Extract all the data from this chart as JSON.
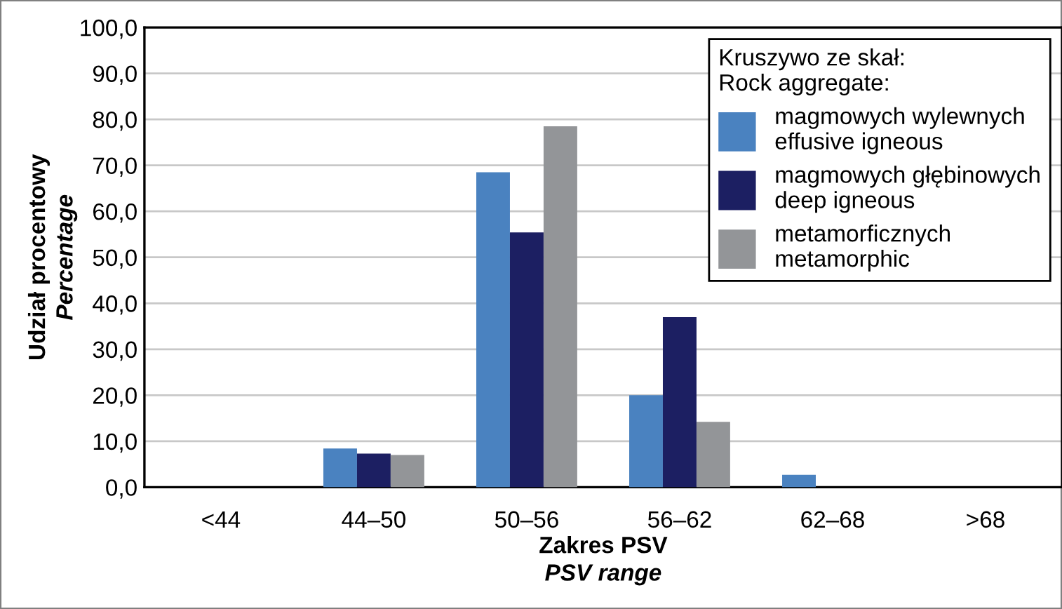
{
  "chart_data": {
    "type": "bar",
    "xlabel": "Zakres PSV\nPSV range",
    "ylabel": "Udział procentowy\nPercentage",
    "legend_title": "Kruszywo ze skał:\nRock aggregate:",
    "categories": [
      "<44",
      "44–50",
      "50–56",
      "56–62",
      "62–68",
      ">68"
    ],
    "series": [
      {
        "name": "magmowych wylewnych\neffusive igneous",
        "color": "#4a82c0",
        "values": [
          0,
          8.4,
          68.5,
          20.0,
          2.7,
          0
        ]
      },
      {
        "name": "magmowych głębinowych\ndeep igneous",
        "color": "#1c1f62",
        "values": [
          0,
          7.3,
          55.4,
          37.0,
          0,
          0
        ]
      },
      {
        "name": "metamorficznych\nmetamorphic",
        "color": "#939598",
        "values": [
          0,
          7.0,
          78.5,
          14.2,
          0,
          0
        ]
      }
    ],
    "ylim": [
      0,
      100
    ],
    "yticks": [
      {
        "value": 0,
        "label": "0,0"
      },
      {
        "value": 10,
        "label": "10,0"
      },
      {
        "value": 20,
        "label": "20,0"
      },
      {
        "value": 30,
        "label": "30,0"
      },
      {
        "value": 40,
        "label": "40,0"
      },
      {
        "value": 50,
        "label": "50,0"
      },
      {
        "value": 60,
        "label": "60,0"
      },
      {
        "value": 70,
        "label": "70,0"
      },
      {
        "value": 80,
        "label": "80,0"
      },
      {
        "value": 90,
        "label": "90,0"
      },
      {
        "value": 100,
        "label": "100,0"
      }
    ],
    "grid": "y",
    "legend": "top right"
  }
}
